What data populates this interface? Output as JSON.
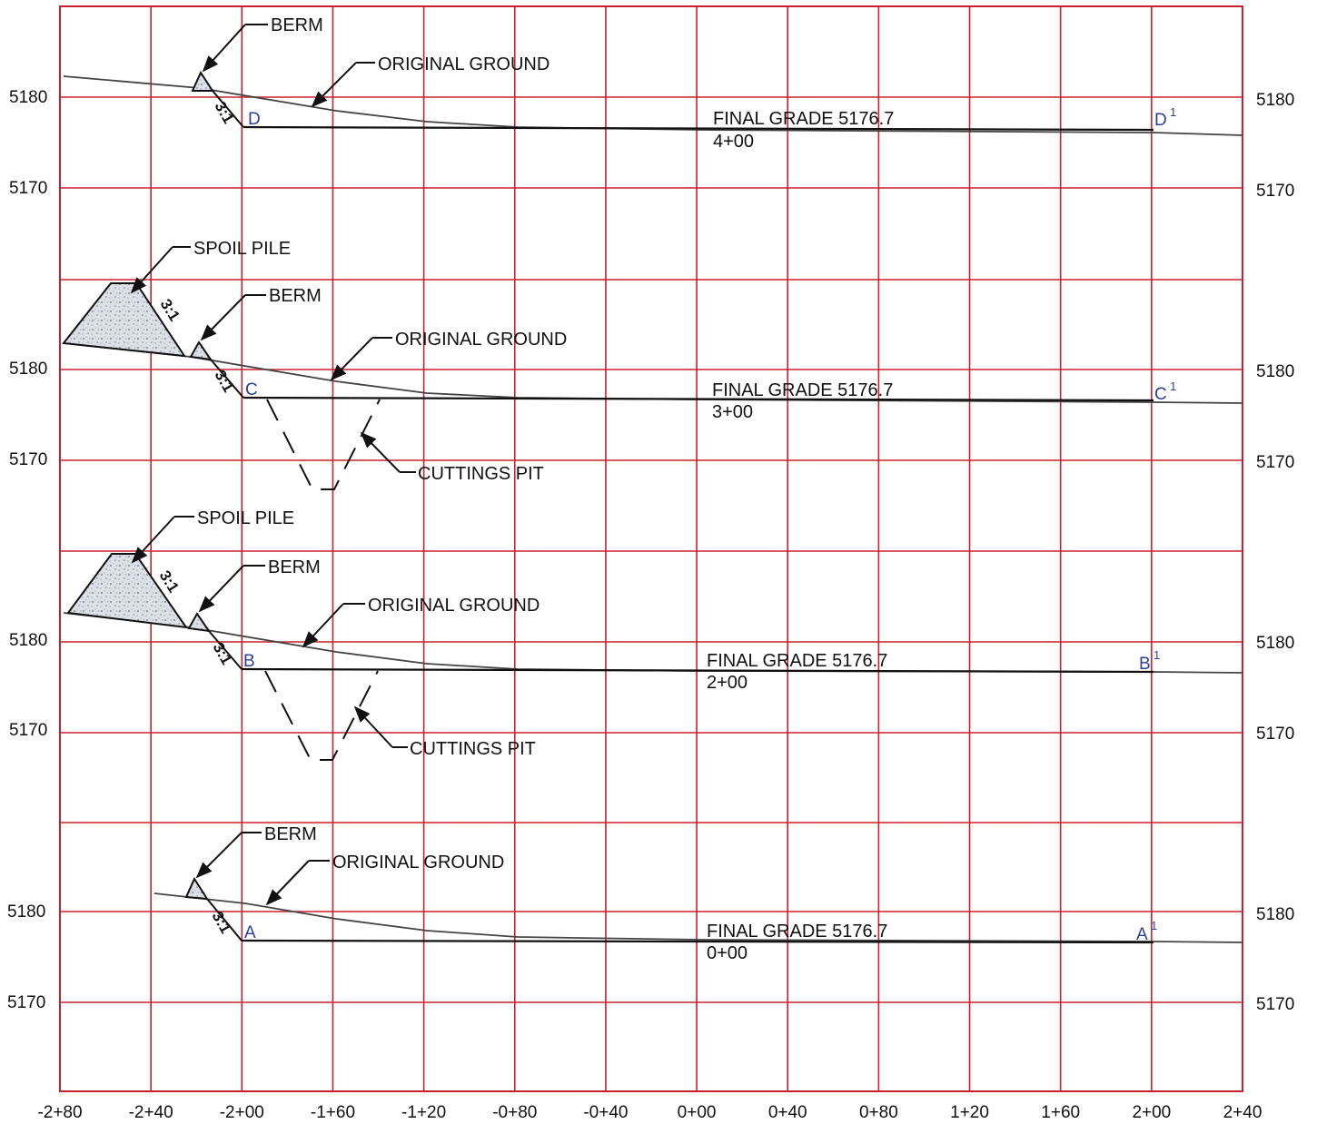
{
  "colors": {
    "grid": "#c8202e",
    "line": "#111111",
    "ground": "#444444",
    "point_label": "#2b3f9e",
    "fill": "#c9ced6"
  },
  "x_axis_labels": [
    "-2+80",
    "-2+40",
    "-2+00",
    "-1+60",
    "-1+20",
    "-0+80",
    "-0+40",
    "0+00",
    "0+40",
    "0+80",
    "1+20",
    "1+60",
    "2+00",
    "2+40"
  ],
  "sections": [
    {
      "id": "D",
      "elevation_labels": {
        "upper": "5180",
        "lower": "5170"
      },
      "callouts": {
        "berm": "BERM",
        "original_ground": "ORIGINAL GROUND"
      },
      "final_grade_label": "FINAL GRADE 5176.7",
      "station_label": "4+00",
      "point_left": "D",
      "point_right": "D",
      "point_right_sup": "1",
      "slope_berm": "3:1"
    },
    {
      "id": "C",
      "elevation_labels": {
        "upper": "5180",
        "lower": "5170"
      },
      "callouts": {
        "spoil_pile": "SPOIL PILE",
        "berm": "BERM",
        "original_ground": "ORIGINAL GROUND",
        "cuttings_pit": "CUTTINGS PIT"
      },
      "final_grade_label": "FINAL GRADE 5176.7",
      "station_label": "3+00",
      "point_left": "C",
      "point_right": "C",
      "point_right_sup": "1",
      "slope_spoil": "3:1",
      "slope_berm": "3:1"
    },
    {
      "id": "B",
      "elevation_labels": {
        "upper": "5180",
        "lower": "5170"
      },
      "callouts": {
        "spoil_pile": "SPOIL PILE",
        "berm": "BERM",
        "original_ground": "ORIGINAL GROUND",
        "cuttings_pit": "CUTTINGS PIT"
      },
      "final_grade_label": "FINAL GRADE 5176.7",
      "station_label": "2+00",
      "point_left": "B",
      "point_right": "B",
      "point_right_sup": "1",
      "slope_spoil": "3:1",
      "slope_berm": "3:1"
    },
    {
      "id": "A",
      "elevation_labels": {
        "upper": "5180",
        "lower": "5170"
      },
      "callouts": {
        "berm": "BERM",
        "original_ground": "ORIGINAL GROUND"
      },
      "final_grade_label": "FINAL GRADE 5176.7",
      "station_label": "0+00",
      "point_left": "A",
      "point_right": "A",
      "point_right_sup": "1",
      "slope_berm": "3:1"
    }
  ]
}
